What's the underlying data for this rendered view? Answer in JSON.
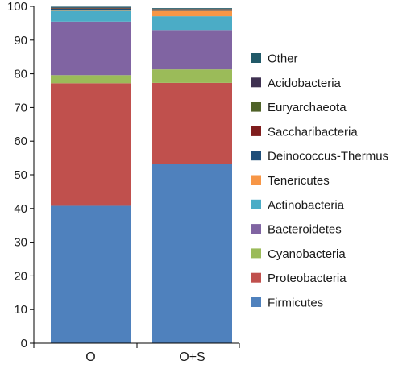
{
  "chart_data": {
    "type": "bar",
    "stacked": true,
    "categories": [
      "O",
      "O+S"
    ],
    "ylim": [
      0,
      100
    ],
    "yticks": [
      0,
      10,
      20,
      30,
      40,
      50,
      60,
      70,
      80,
      90,
      100
    ],
    "grid": false,
    "legend_position": "right",
    "series": [
      {
        "name": "Firmicutes",
        "color": "#4f81bd",
        "values": [
          40.8,
          53.2
        ]
      },
      {
        "name": "Proteobacteria",
        "color": "#c0504d",
        "values": [
          36.4,
          24.1
        ]
      },
      {
        "name": "Cyanobacteria",
        "color": "#9bbb59",
        "values": [
          2.4,
          4.0
        ]
      },
      {
        "name": "Bacteroidetes",
        "color": "#8064a2",
        "values": [
          15.9,
          11.7
        ]
      },
      {
        "name": "Actinobacteria",
        "color": "#4bacc6",
        "values": [
          3.2,
          4.1
        ]
      },
      {
        "name": "Tenericutes",
        "color": "#f79646",
        "values": [
          0.2,
          1.6
        ]
      },
      {
        "name": "Deinococcus-Thermus",
        "color": "#1f4e79",
        "values": [
          0.4,
          0.3
        ]
      },
      {
        "name": "Saccharibacteria",
        "color": "#7f1d1d",
        "values": [
          0.1,
          0.1
        ]
      },
      {
        "name": "Euryarchaeota",
        "color": "#4f6228",
        "values": [
          0.1,
          0.1
        ]
      },
      {
        "name": "Acidobacteria",
        "color": "#3f3151",
        "values": [
          0.1,
          0.1
        ]
      },
      {
        "name": "Other",
        "color": "#215968",
        "values": [
          0.3,
          0.2
        ]
      }
    ]
  }
}
